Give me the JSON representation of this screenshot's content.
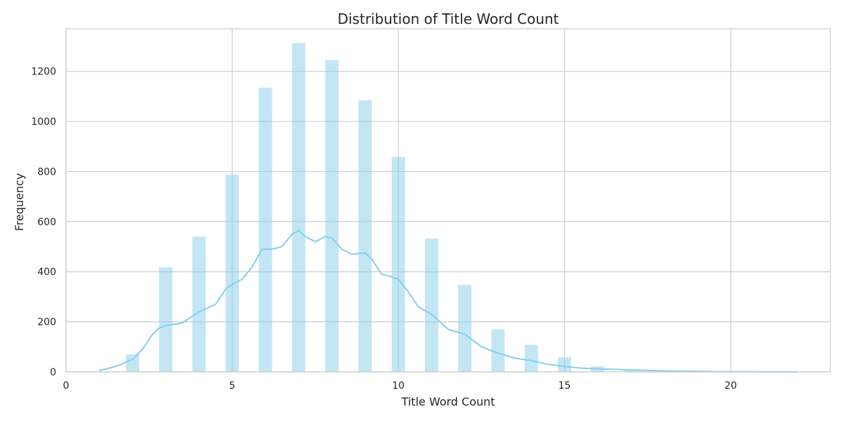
{
  "chart_data": {
    "type": "bar",
    "title": "Distribution of Title Word Count",
    "xlabel": "Title Word Count",
    "ylabel": "Frequency",
    "xlim": [
      0,
      23
    ],
    "ylim": [
      0,
      1370
    ],
    "grid": true,
    "xticks": [
      "0",
      "5",
      "10",
      "15",
      "20"
    ],
    "yticks": [
      "0",
      "200",
      "400",
      "600",
      "800",
      "1000",
      "1200"
    ],
    "bar_color": "#87CEEB",
    "kde_color": "#87CEEB",
    "bins": [
      {
        "x": 2,
        "value": 70
      },
      {
        "x": 3,
        "value": 418
      },
      {
        "x": 4,
        "value": 540
      },
      {
        "x": 5,
        "value": 788
      },
      {
        "x": 6,
        "value": 1135
      },
      {
        "x": 7,
        "value": 1313
      },
      {
        "x": 8,
        "value": 1245
      },
      {
        "x": 9,
        "value": 1085
      },
      {
        "x": 10,
        "value": 858
      },
      {
        "x": 11,
        "value": 532
      },
      {
        "x": 12,
        "value": 347
      },
      {
        "x": 13,
        "value": 170
      },
      {
        "x": 14,
        "value": 108
      },
      {
        "x": 15,
        "value": 58
      },
      {
        "x": 16,
        "value": 22
      },
      {
        "x": 17,
        "value": 8
      },
      {
        "x": 18,
        "value": 3
      },
      {
        "x": 19,
        "value": 1
      },
      {
        "x": 22,
        "value": 1
      }
    ],
    "kde": {
      "x": [
        1.0,
        1.5,
        2.0,
        2.3,
        2.6,
        2.8,
        3.0,
        3.5,
        4.0,
        4.5,
        4.8,
        5.0,
        5.3,
        5.6,
        5.9,
        6.2,
        6.5,
        6.8,
        7.0,
        7.2,
        7.5,
        7.8,
        8.0,
        8.3,
        8.6,
        9.0,
        9.2,
        9.5,
        9.8,
        10.0,
        10.3,
        10.6,
        11.0,
        11.5,
        12.0,
        12.5,
        13.0,
        13.5,
        14.0,
        14.5,
        15.0,
        15.5,
        16.0,
        16.5,
        17.0,
        17.5,
        18.0,
        19.0,
        20.0,
        21.0,
        22.0
      ],
      "y": [
        5,
        22,
        50,
        90,
        150,
        175,
        185,
        195,
        240,
        270,
        330,
        350,
        370,
        420,
        490,
        490,
        500,
        550,
        565,
        540,
        520,
        540,
        535,
        490,
        470,
        475,
        450,
        390,
        380,
        370,
        320,
        260,
        230,
        170,
        150,
        100,
        75,
        55,
        45,
        30,
        22,
        15,
        12,
        10,
        8,
        6,
        4,
        2,
        1,
        0.5,
        0.3
      ]
    }
  }
}
